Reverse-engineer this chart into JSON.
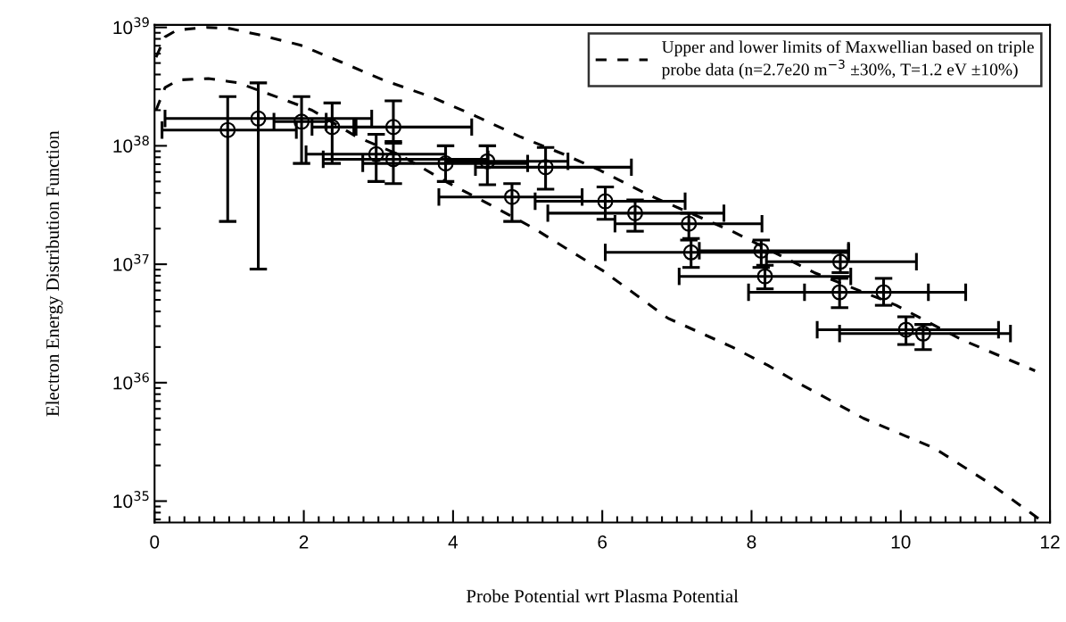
{
  "chart_data": {
    "type": "scatter",
    "xlabel": "Probe Potential wrt Plasma Potential",
    "ylabel": "Electron Energy Distribution Function",
    "log": "y",
    "grid": false,
    "legend": "top right",
    "xlim": [
      0,
      12
    ],
    "xticks": [
      0,
      2,
      4,
      6,
      8,
      10,
      12
    ],
    "ylim": [
      6.6e+34,
      1.05e+39
    ],
    "yticks": [
      {
        "value": 1e+35,
        "label": "10$^{35}$"
      },
      {
        "value": 1e+36,
        "label": "10$^{36}$"
      },
      {
        "value": 1e+37,
        "label": "10$^{37}$"
      },
      {
        "value": 1e+38,
        "label": "10$^{38}$"
      },
      {
        "value": 1e+39,
        "label": "10$^{39}$"
      }
    ],
    "series": [
      {
        "type": "line",
        "name": "Upper and lower limits of Maxwellian based on triple\nprobe data (n=2.7e20 m$^{−3}$ ±30%, T=1.2 eV ±10%)",
        "color": "#000000",
        "line_style": "dashed",
        "marker": "none",
        "x": [
          0.02,
          0.14,
          0.3,
          0.7,
          1.0,
          1.39,
          1.95,
          2.5,
          3.06,
          3.7,
          4.29,
          4.89,
          5.48,
          5.97,
          6.64,
          7.74,
          8.84,
          9.94,
          10.82,
          11.8
        ],
        "values": [
          5.6e+38,
          8.3e+38,
          9.5e+38,
          1e+39,
          9.8e+38,
          8.7e+38,
          7.1e+38,
          5.1e+38,
          3.6e+38,
          2.6e+38,
          1.8e+38,
          1.2e+38,
          8.5e+37,
          6.2e+37,
          3.8e+37,
          1.9e+37,
          8.5e+36,
          4.5e+36,
          2.3e+36,
          1.26e+36
        ]
      },
      {
        "type": "line",
        "color": "#000000",
        "line_style": "dashed",
        "marker": "none",
        "x": [
          0.02,
          0.14,
          0.32,
          0.72,
          1.12,
          1.63,
          2.11,
          2.7,
          3.3,
          3.9,
          4.49,
          5.09,
          5.6,
          6.0,
          6.88,
          7.74,
          8.22,
          8.62,
          9.5,
          10.45,
          11.2,
          11.85
        ],
        "values": [
          2e+38,
          3.1e+38,
          3.6e+38,
          3.7e+38,
          3.4e+38,
          2.6e+38,
          2e+38,
          1.2e+38,
          8.3e+37,
          5e+37,
          3.2e+37,
          2e+37,
          1.26e+37,
          8.9e+36,
          3.5e+36,
          2e+36,
          1.4e+36,
          1e+36,
          5e+35,
          2.8e+35,
          1.4e+35,
          7.1e+34
        ]
      },
      {
        "color": "#000000",
        "marker": "circle",
        "x": [
          0.98,
          1.39,
          1.97,
          2.38,
          3.2,
          2.97,
          3.2,
          3.9,
          4.46,
          5.24,
          4.79,
          6.04,
          6.44,
          7.16,
          7.19,
          8.13,
          9.19,
          8.18,
          9.18,
          9.77,
          10.07,
          10.3
        ],
        "values": [
          1.36e+38,
          1.7e+38,
          1.6e+38,
          1.44e+38,
          1.44e+38,
          8.5e+37,
          7.7e+37,
          7.1e+37,
          7.4e+37,
          6.6e+37,
          3.7e+37,
          3.4e+37,
          2.7e+37,
          2.2e+37,
          1.26e+37,
          1.3e+37,
          1.05e+37,
          7.9e+36,
          5.8e+36,
          5.8e+36,
          2.8e+36,
          2.6e+36
        ],
        "errors": [
          [
            2.3e+37,
            2.6e+38
          ],
          [
            9.1e+36,
            3.4e+38
          ],
          [
            7.1e+37,
            2.6e+38
          ],
          [
            7.1e+37,
            2.3e+38
          ],
          [
            1.05e+38,
            2.4e+38
          ],
          [
            5e+37,
            1.25e+38
          ],
          [
            4.8e+37,
            1.09e+38
          ],
          [
            5e+37,
            1e+38
          ],
          [
            4.7e+37,
            1e+38
          ],
          [
            4.3e+37,
            9.7e+37
          ],
          [
            2.3e+37,
            4.8e+37
          ],
          [
            2.4e+37,
            4.5e+37
          ],
          [
            1.9e+37,
            3.5e+37
          ],
          [
            1.6e+37,
            2.7e+37
          ],
          [
            9.4e+36,
            1.65e+37
          ],
          [
            9.4e+36,
            1.6e+37
          ],
          [
            8.5e+36,
            1.26e+37
          ],
          [
            6.2e+36,
            9.8e+36
          ],
          [
            4.3e+36,
            7.6e+36
          ],
          [
            4.5e+36,
            7.6e+36
          ],
          [
            2.1e+36,
            3.6e+36
          ],
          [
            1.9e+36,
            3.1e+36
          ]
        ],
        "xerrors": [
          [
            0.1,
            1.9
          ],
          [
            0.14,
            2.91
          ],
          [
            1.6,
            2.3
          ],
          [
            2.11,
            2.67
          ],
          [
            2.7,
            4.25
          ],
          [
            2.03,
            3.9
          ],
          [
            2.26,
            4.47
          ],
          [
            2.79,
            5.0
          ],
          [
            3.9,
            5.54
          ],
          [
            4.3,
            6.39
          ],
          [
            3.81,
            5.73
          ],
          [
            5.1,
            7.11
          ],
          [
            5.27,
            7.63
          ],
          [
            6.17,
            8.14
          ],
          [
            6.04,
            9.3
          ],
          [
            7.3,
            9.3
          ],
          [
            8.2,
            10.21
          ],
          [
            7.03,
            9.33
          ],
          [
            7.96,
            10.37
          ],
          [
            8.71,
            10.87
          ],
          [
            8.88,
            11.31
          ],
          [
            9.18,
            11.47
          ]
        ]
      }
    ]
  }
}
